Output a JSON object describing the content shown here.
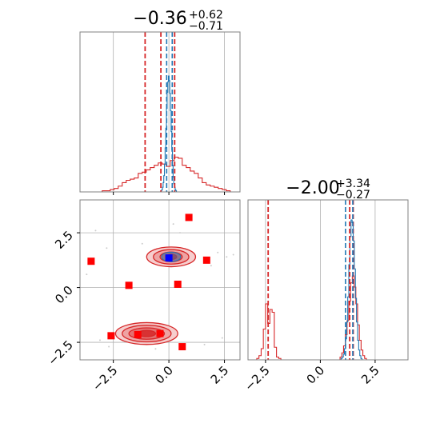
{
  "chart_data": {
    "type": "corner",
    "colors": {
      "blue": "#1f77b4",
      "red": "#d62728",
      "marker_red": "#ff0000",
      "marker_blue": "#0000ff",
      "grid": "#b0b0b0",
      "frame": "#808080"
    },
    "params": [
      {
        "title_value": "−0.36",
        "title_plus": "+0.62",
        "title_minus": "−0.71",
        "xlim": [
          -4.0,
          3.2
        ],
        "blue_lines": [
          -0.1,
          0.15
        ],
        "red_lines": [
          -1.07,
          -0.36,
          0.26
        ]
      },
      {
        "title_value": "−2.00",
        "title_plus": "+3.34",
        "title_minus": "−0.27",
        "xlim": [
          -3.3,
          4.0
        ],
        "blue_lines": [
          1.15,
          1.48
        ],
        "red_lines": [
          -2.38,
          1.34,
          1.5
        ]
      }
    ],
    "ticks": [
      -2.5,
      0.0,
      2.5
    ],
    "tick_labels": [
      "−2.5",
      "0.0",
      "2.5"
    ],
    "histograms": [
      {
        "param": 0,
        "color": "red",
        "step": 0.18,
        "start": -3.0,
        "counts": [
          0.01,
          0.01,
          0.02,
          0.03,
          0.05,
          0.08,
          0.1,
          0.11,
          0.12,
          0.16,
          0.17,
          0.19,
          0.21,
          0.23,
          0.25,
          0.24,
          0.22,
          0.27,
          0.3,
          0.29,
          0.23,
          0.21,
          0.18,
          0.16,
          0.12,
          0.08,
          0.06,
          0.05,
          0.04,
          0.03,
          0.02,
          0.01
        ]
      },
      {
        "param": 0,
        "color": "blue",
        "step": 0.03,
        "start": -0.35,
        "counts": [
          0.01,
          0.02,
          0.04,
          0.08,
          0.14,
          0.24,
          0.38,
          0.55,
          0.72,
          0.86,
          0.95,
          1.0,
          0.96,
          0.85,
          0.7,
          0.52,
          0.36,
          0.23,
          0.13,
          0.07,
          0.04,
          0.02,
          0.01
        ]
      },
      {
        "param": 1,
        "color": "red",
        "step": 0.1,
        "start": -2.9,
        "counts": [
          0.01,
          0.03,
          0.08,
          0.22,
          0.4,
          0.26,
          0.36,
          0.34,
          0.09,
          0.02,
          0.01
        ]
      },
      {
        "param": 1,
        "color": "red",
        "step": 0.08,
        "start": 0.9,
        "counts": [
          0.02,
          0.05,
          0.1,
          0.18,
          0.28,
          0.42,
          0.55,
          0.6,
          0.52,
          0.4,
          0.25,
          0.14,
          0.07,
          0.03,
          0.01
        ]
      },
      {
        "param": 1,
        "color": "blue",
        "step": 0.05,
        "start": 0.95,
        "counts": [
          0.01,
          0.02,
          0.04,
          0.08,
          0.15,
          0.27,
          0.45,
          0.68,
          0.88,
          1.0,
          0.98,
          0.85,
          0.65,
          0.44,
          0.27,
          0.14,
          0.07,
          0.03,
          0.01
        ]
      }
    ],
    "joint_markers_red": [
      [
        0.9,
        3.2
      ],
      [
        -3.5,
        1.2
      ],
      [
        -1.8,
        0.1
      ],
      [
        0.4,
        0.15
      ],
      [
        1.7,
        1.25
      ],
      [
        -2.6,
        -2.2
      ],
      [
        -1.4,
        -2.15
      ],
      [
        -0.4,
        -2.1
      ],
      [
        0.6,
        -2.7
      ]
    ],
    "joint_markers_blue": [
      [
        0.0,
        1.35
      ]
    ],
    "joint_scatter": [
      [
        -3.7,
        0.6
      ],
      [
        -3.3,
        2.6
      ],
      [
        -2.7,
        -2.7
      ],
      [
        2.2,
        1.6
      ],
      [
        2.6,
        1.4
      ],
      [
        2.9,
        1.5
      ],
      [
        -1.2,
        2.0
      ],
      [
        1.6,
        -2.6
      ],
      [
        -2.8,
        1.8
      ],
      [
        0.5,
        2.5
      ],
      [
        -3.1,
        -2.4
      ],
      [
        2.4,
        -2.3
      ],
      [
        1.9,
        1.0
      ],
      [
        -0.6,
        -2.8
      ],
      [
        0.2,
        2.9
      ]
    ],
    "joint_contours": [
      {
        "cx": 0.1,
        "cy": 1.4,
        "rx": [
          1.1,
          0.8,
          0.5,
          0.25
        ],
        "ry": [
          0.45,
          0.33,
          0.22,
          0.12
        ]
      },
      {
        "cx": -1.0,
        "cy": -2.1,
        "rx": [
          1.4,
          1.1,
          0.8,
          0.4
        ],
        "ry": [
          0.5,
          0.38,
          0.26,
          0.14
        ]
      }
    ]
  }
}
